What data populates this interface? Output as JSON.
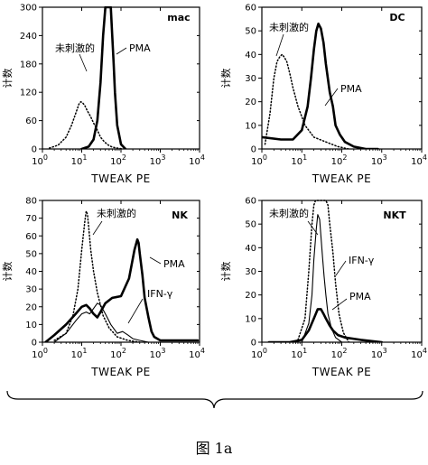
{
  "figure": {
    "caption": "图  1a"
  },
  "chart_data": [
    {
      "type": "line",
      "title": "mac",
      "xlabel": "TWEAK PE",
      "ylabel": "计数",
      "x_scale": "log",
      "xlim": [
        1,
        10000
      ],
      "ylim": [
        0,
        300
      ],
      "yticks": [
        0,
        60,
        120,
        180,
        240,
        300
      ],
      "annotations": [
        "未刺激的",
        "PMA"
      ],
      "series": [
        {
          "name": "未刺激的",
          "style": "dotted",
          "x": [
            1.5,
            2.5,
            4,
            5.5,
            7,
            8.5,
            9.5,
            10.5,
            12,
            14,
            17,
            20,
            25,
            30,
            38,
            48,
            60,
            80,
            110
          ],
          "y": [
            2,
            8,
            25,
            50,
            75,
            95,
            100,
            98,
            92,
            80,
            68,
            55,
            40,
            25,
            15,
            8,
            4,
            2,
            0
          ]
        },
        {
          "name": "PMA",
          "style": "thick",
          "x": [
            10,
            15,
            20,
            25,
            30,
            35,
            40,
            45,
            50,
            55,
            60,
            65,
            70,
            80,
            100,
            130
          ],
          "y": [
            0,
            5,
            20,
            60,
            140,
            240,
            300,
            300,
            300,
            300,
            240,
            180,
            120,
            50,
            10,
            0
          ]
        }
      ]
    },
    {
      "type": "line",
      "title": "DC",
      "xlabel": "TWEAK PE",
      "ylabel": "计数",
      "x_scale": "log",
      "xlim": [
        1,
        10000
      ],
      "ylim": [
        0,
        60
      ],
      "yticks": [
        0,
        10,
        20,
        30,
        40,
        50,
        60
      ],
      "annotations": [
        "未刺激的",
        "PMA"
      ],
      "series": [
        {
          "name": "未刺激的",
          "style": "dotted",
          "x": [
            1.2,
            1.6,
            2,
            2.4,
            2.8,
            3.2,
            3.6,
            4.2,
            5,
            6,
            8,
            12,
            20,
            40,
            80,
            150
          ],
          "y": [
            2,
            15,
            30,
            37,
            39,
            40,
            39,
            37,
            32,
            26,
            18,
            10,
            5,
            3,
            1,
            0
          ]
        },
        {
          "name": "PMA",
          "style": "thick",
          "x": [
            1,
            3,
            6,
            10,
            14,
            17,
            20,
            23,
            26,
            30,
            35,
            40,
            50,
            60,
            70,
            90,
            120,
            200,
            400,
            800
          ],
          "y": [
            5,
            4,
            4,
            8,
            18,
            30,
            42,
            50,
            53,
            51,
            45,
            36,
            24,
            18,
            10,
            6,
            3,
            1,
            0,
            0
          ]
        }
      ]
    },
    {
      "type": "line",
      "title": "NK",
      "xlabel": "TWEAK PE",
      "ylabel": "计数",
      "x_scale": "log",
      "xlim": [
        1,
        10000
      ],
      "ylim": [
        0,
        80
      ],
      "yticks": [
        0,
        10,
        20,
        30,
        40,
        50,
        60,
        70,
        80
      ],
      "annotations": [
        "未刺激的",
        "PMA",
        "IFN-γ"
      ],
      "series": [
        {
          "name": "未刺激的",
          "style": "dotted",
          "x": [
            2,
            4,
            6,
            8,
            10,
            12,
            13,
            14,
            15,
            17,
            20,
            25,
            35,
            50,
            80,
            150,
            300
          ],
          "y": [
            1,
            5,
            15,
            30,
            52,
            68,
            74,
            72,
            65,
            52,
            40,
            28,
            15,
            8,
            3,
            1,
            0
          ]
        },
        {
          "name": "PMA",
          "style": "thick",
          "x": [
            1.2,
            2,
            4,
            7,
            10,
            13,
            16,
            20,
            25,
            30,
            40,
            60,
            100,
            160,
            220,
            260,
            280,
            300,
            350,
            400,
            500,
            600,
            700,
            1000,
            4000,
            9000
          ],
          "y": [
            0,
            4,
            10,
            16,
            20,
            21,
            19,
            16,
            14,
            17,
            22,
            25,
            26,
            36,
            52,
            58,
            56,
            50,
            38,
            25,
            14,
            6,
            3,
            1,
            1,
            1
          ]
        },
        {
          "name": "IFN-γ",
          "style": "thin",
          "x": [
            2,
            4,
            7,
            10,
            13,
            16,
            20,
            25,
            30,
            40,
            55,
            80,
            110,
            150,
            200,
            300,
            500,
            800
          ],
          "y": [
            0,
            5,
            12,
            16,
            17,
            16,
            19,
            22,
            21,
            16,
            10,
            5,
            6,
            4,
            2,
            1,
            0,
            0
          ]
        }
      ]
    },
    {
      "type": "line",
      "title": "NKT",
      "xlabel": "TWEAK PE",
      "ylabel": "计数",
      "x_scale": "log",
      "xlim": [
        1,
        10000
      ],
      "ylim": [
        0,
        60
      ],
      "yticks": [
        0,
        10,
        20,
        30,
        40,
        50,
        60
      ],
      "annotations": [
        "未刺激的",
        "IFN-γ",
        "PMA"
      ],
      "series": [
        {
          "name": "未刺激的",
          "style": "dotted",
          "x": [
            8,
            12,
            15,
            18,
            20,
            22,
            25,
            30,
            35,
            40,
            45,
            50,
            60,
            70,
            85,
            110,
            150
          ],
          "y": [
            1,
            10,
            30,
            50,
            58,
            60,
            60,
            60,
            60,
            60,
            58,
            50,
            38,
            25,
            12,
            4,
            0
          ]
        },
        {
          "name": "IFN-γ",
          "style": "thin",
          "x": [
            10,
            15,
            18,
            20,
            23,
            25,
            28,
            30,
            33,
            36,
            40,
            45,
            55,
            70,
            100
          ],
          "y": [
            0,
            8,
            20,
            35,
            48,
            54,
            52,
            45,
            36,
            28,
            20,
            12,
            6,
            2,
            0
          ]
        },
        {
          "name": "PMA",
          "style": "thick",
          "x": [
            1.5,
            5,
            10,
            15,
            20,
            25,
            30,
            35,
            40,
            50,
            60,
            80,
            120,
            300,
            1000
          ],
          "y": [
            0,
            0,
            1,
            5,
            10,
            14,
            14,
            12,
            10,
            7,
            5,
            3,
            2,
            1,
            0
          ]
        }
      ]
    }
  ]
}
